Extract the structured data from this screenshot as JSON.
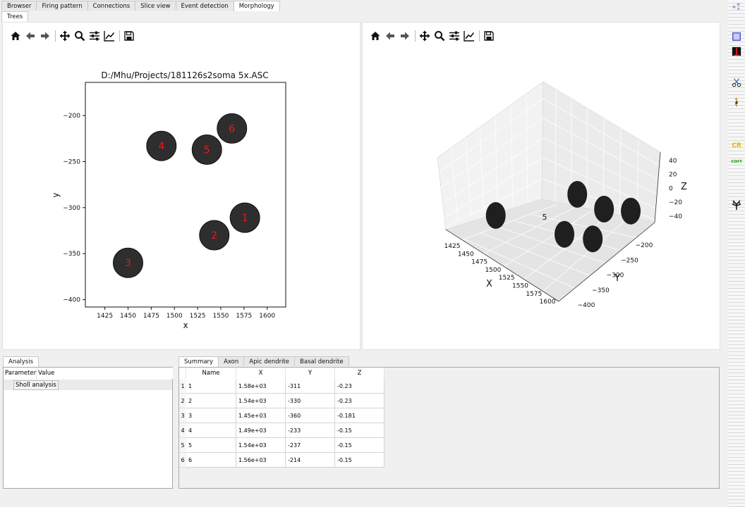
{
  "main_tabs": [
    "Browser",
    "Firing pattern",
    "Connections",
    "Slice view",
    "Event detection",
    "Morphology"
  ],
  "active_main_tab": 5,
  "sub_tabs": [
    "Trees"
  ],
  "plot2d": {
    "title": "D:/Mhu/Projects/181126s2soma 5x.ASC",
    "xlabel": "x",
    "ylabel": "y",
    "xticks": [
      "1425",
      "1450",
      "1475",
      "1500",
      "1525",
      "1550",
      "1575",
      "1600"
    ],
    "yticks": [
      "−200",
      "−250",
      "−300",
      "−350",
      "−400"
    ]
  },
  "plot3d": {
    "xlabel": "X",
    "ylabel": "Y",
    "zlabel": "Z",
    "xticks": [
      "1425",
      "1450",
      "1475",
      "1500",
      "1525",
      "1550",
      "1575",
      "1600"
    ],
    "yticks": [
      "−200",
      "−250",
      "−300",
      "−350",
      "−400"
    ],
    "zticks": [
      "40",
      "20",
      "0",
      "−20",
      "−40"
    ],
    "visible_label": "5"
  },
  "chart_data": {
    "type": "scatter",
    "title": "D:/Mhu/Projects/181126s2soma 5x.ASC",
    "xlabel": "x",
    "ylabel": "y",
    "xlim": [
      1404,
      1620
    ],
    "ylim": [
      -408,
      -164
    ],
    "grid": false,
    "points": [
      {
        "label": "1",
        "x": 1576,
        "y": -311
      },
      {
        "label": "2",
        "x": 1543,
        "y": -330
      },
      {
        "label": "3",
        "x": 1450,
        "y": -360
      },
      {
        "label": "4",
        "x": 1486,
        "y": -233
      },
      {
        "label": "5",
        "x": 1535,
        "y": -237
      },
      {
        "label": "6",
        "x": 1562,
        "y": -214
      }
    ],
    "point_color": "#2e2e2e",
    "label_color": "#e8191d"
  },
  "analysis": {
    "tab": "Analysis",
    "columns": [
      "Parameter",
      "Value"
    ],
    "row": "Sholl analysis"
  },
  "table": {
    "tabs": [
      "Summary",
      "Axon",
      "Apic dendrite",
      "Basal dendrite"
    ],
    "columns": [
      "Name",
      "X",
      "Y",
      "Z"
    ],
    "rows": [
      [
        "1",
        "1.58e+03",
        "-311",
        "-0.23"
      ],
      [
        "2",
        "1.54e+03",
        "-330",
        "-0.23"
      ],
      [
        "3",
        "1.45e+03",
        "-360",
        "-0.181"
      ],
      [
        "4",
        "1.49e+03",
        "-233",
        "-0.15"
      ],
      [
        "5",
        "1.54e+03",
        "-237",
        "-0.15"
      ],
      [
        "6",
        "1.56e+03",
        "-214",
        "-0.15"
      ]
    ]
  },
  "right_toolbar": {
    "cr_label": "CR",
    "corr_label": "corr"
  }
}
